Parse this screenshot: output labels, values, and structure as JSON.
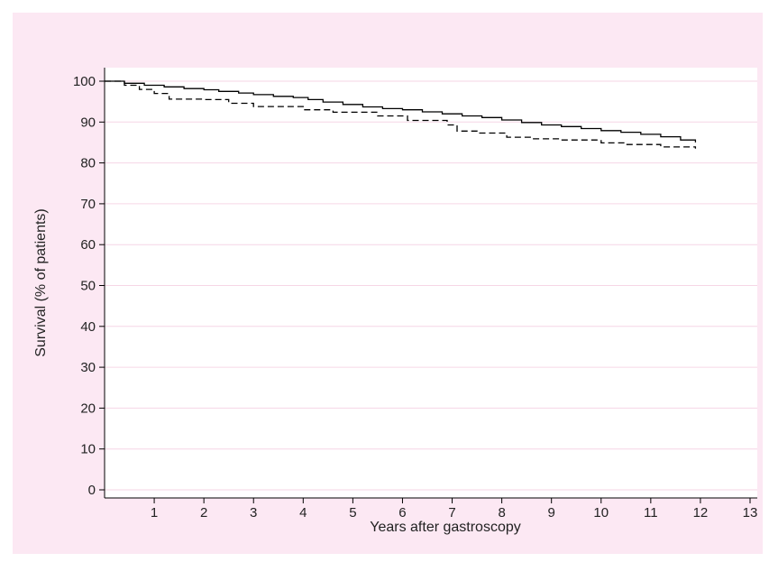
{
  "chart_data": {
    "type": "line",
    "title": "",
    "xlabel": "Years after gastroscopy",
    "ylabel": "Survival (% of patients)",
    "xlim": [
      0,
      13
    ],
    "ylim": [
      0,
      100
    ],
    "xticks": [
      1,
      2,
      3,
      4,
      5,
      6,
      7,
      8,
      9,
      10,
      11,
      12,
      13
    ],
    "yticks": [
      0,
      10,
      20,
      30,
      40,
      50,
      60,
      70,
      80,
      90,
      100
    ],
    "grid": "horizontal",
    "legend": "none",
    "step": true,
    "series": [
      {
        "style": "solid",
        "color": "#000000",
        "x": [
          0,
          0.4,
          0.8,
          1.2,
          1.6,
          2.0,
          2.3,
          2.7,
          3.0,
          3.4,
          3.8,
          4.1,
          4.4,
          4.8,
          5.2,
          5.6,
          6.0,
          6.4,
          6.8,
          7.2,
          7.6,
          8.0,
          8.4,
          8.8,
          9.2,
          9.6,
          10.0,
          10.4,
          10.8,
          11.2,
          11.6,
          11.9
        ],
        "y": [
          100,
          99.5,
          99.0,
          98.6,
          98.2,
          97.9,
          97.5,
          97.1,
          96.7,
          96.3,
          96.0,
          95.5,
          94.9,
          94.3,
          93.7,
          93.3,
          93.0,
          92.5,
          92.0,
          91.5,
          91.1,
          90.5,
          89.9,
          89.3,
          88.9,
          88.4,
          87.9,
          87.5,
          87.0,
          86.4,
          85.6,
          85.0
        ]
      },
      {
        "style": "dashed",
        "color": "#000000",
        "x": [
          0,
          0.4,
          0.7,
          1.0,
          1.3,
          2.0,
          2.5,
          3.0,
          4.0,
          4.6,
          5.5,
          6.1,
          6.9,
          7.1,
          7.5,
          8.1,
          8.6,
          9.2,
          10.0,
          10.5,
          11.2,
          11.9
        ],
        "y": [
          100,
          99.0,
          98.0,
          97.0,
          95.6,
          95.5,
          94.6,
          93.8,
          93.0,
          92.4,
          91.5,
          90.4,
          89.3,
          87.8,
          87.3,
          86.3,
          85.9,
          85.6,
          84.9,
          84.5,
          83.9,
          83.5
        ]
      }
    ]
  }
}
